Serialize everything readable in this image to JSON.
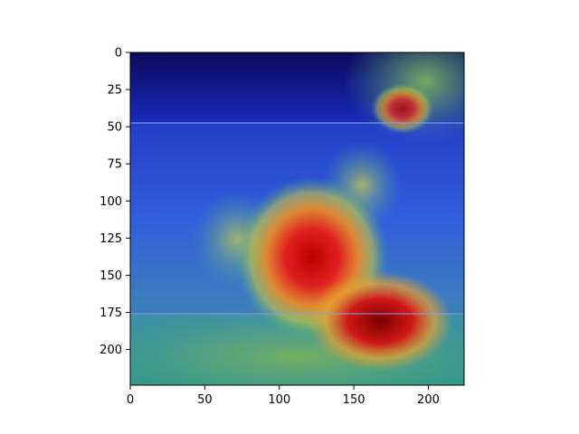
{
  "image_content": {
    "description": "Grad-CAM style heatmap overlay on a dark car-interior selfie of two smiling people; hottest region over the raised fist and lower-center.",
    "colormap": "jet",
    "heat_peak": "lower-center",
    "photo_band_rows": [
      47,
      175
    ]
  },
  "axes": {
    "xlim": [
      0,
      224
    ],
    "ylim": [
      224,
      0
    ],
    "x_ticks": [
      {
        "value": 0,
        "label": "0"
      },
      {
        "value": 50,
        "label": "50"
      },
      {
        "value": 100,
        "label": "100"
      },
      {
        "value": 150,
        "label": "150"
      },
      {
        "value": 200,
        "label": "200"
      }
    ],
    "y_ticks": [
      {
        "value": 0,
        "label": "0"
      },
      {
        "value": 25,
        "label": "25"
      },
      {
        "value": 50,
        "label": "50"
      },
      {
        "value": 75,
        "label": "75"
      },
      {
        "value": 100,
        "label": "100"
      },
      {
        "value": 125,
        "label": "125"
      },
      {
        "value": 150,
        "label": "150"
      },
      {
        "value": 175,
        "label": "175"
      },
      {
        "value": 200,
        "label": "200"
      }
    ]
  },
  "colors": {
    "cold": "#00008b",
    "cool": "#2b6bff",
    "warm_green": "#6fa85f",
    "yellow": "#d8d040",
    "hot": "#c8141e",
    "hottest": "#8b0000"
  }
}
